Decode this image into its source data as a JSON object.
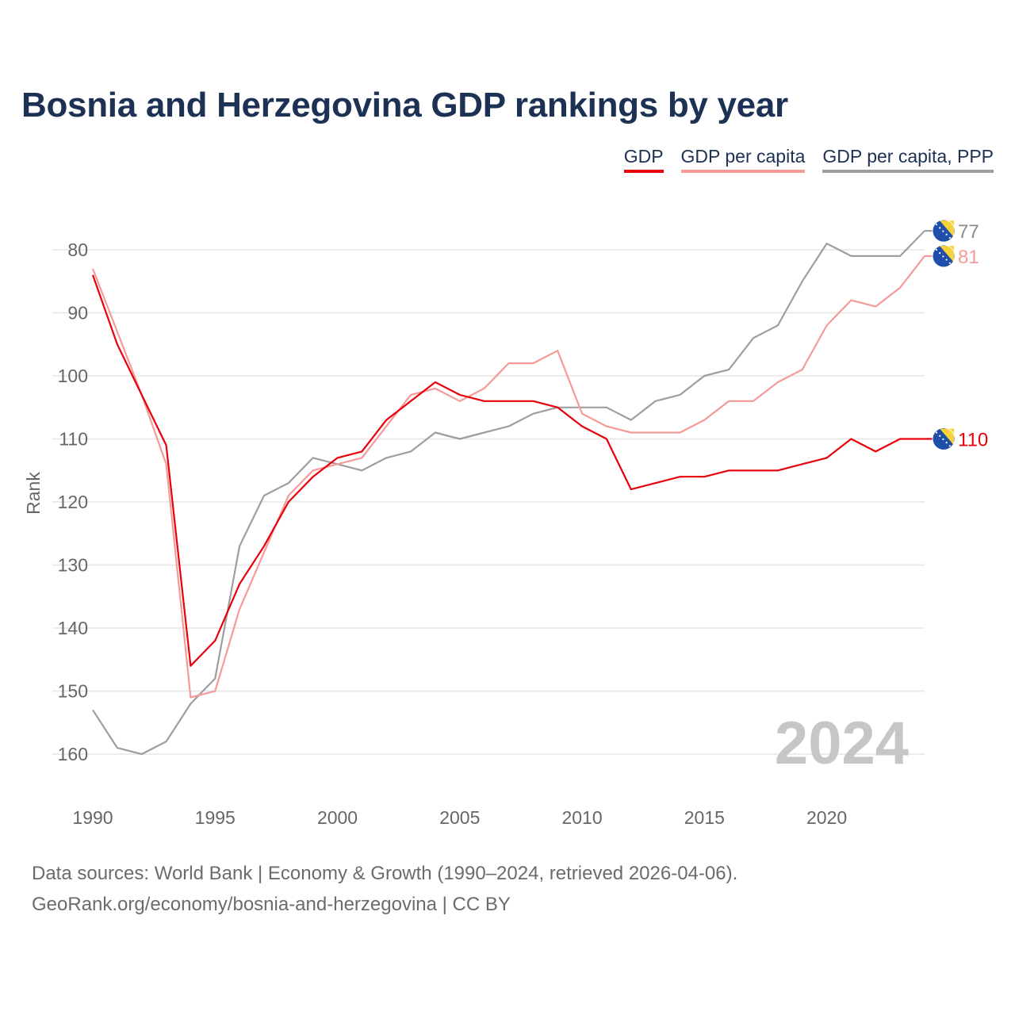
{
  "title": "Bosnia and Herzegovina GDP rankings by year",
  "legend": [
    {
      "label": "GDP",
      "color": "#e8000b"
    },
    {
      "label": "GDP per capita",
      "color": "#f59a9a"
    },
    {
      "label": "GDP per capita, PPP",
      "color": "#9e9e9e"
    }
  ],
  "year_watermark": "2024",
  "source_line1": "Data sources: World Bank | Economy & Growth (1990–2024, retrieved 2026-04-06).",
  "source_line2": "GeoRank.org/economy/bosnia-and-herzegovina | CC BY",
  "chart_data": {
    "type": "line",
    "ylabel": "Rank",
    "xlabel": "",
    "y_inverted": true,
    "ylim": [
      75,
      164
    ],
    "xlim": [
      1990,
      2024
    ],
    "y_ticks": [
      80,
      90,
      100,
      110,
      120,
      130,
      140,
      150,
      160
    ],
    "x_ticks": [
      1990,
      1995,
      2000,
      2005,
      2010,
      2015,
      2020
    ],
    "x": [
      1990,
      1991,
      1992,
      1993,
      1994,
      1995,
      1996,
      1997,
      1998,
      1999,
      2000,
      2001,
      2002,
      2003,
      2004,
      2005,
      2006,
      2007,
      2008,
      2009,
      2010,
      2011,
      2012,
      2013,
      2014,
      2015,
      2016,
      2017,
      2018,
      2019,
      2020,
      2021,
      2022,
      2023,
      2024
    ],
    "series": [
      {
        "name": "GDP",
        "color": "#e8000b",
        "end_label": "110",
        "values": [
          84,
          95,
          103,
          111,
          146,
          142,
          133,
          127,
          120,
          116,
          113,
          112,
          107,
          104,
          101,
          103,
          104,
          104,
          104,
          105,
          108,
          110,
          118,
          117,
          116,
          116,
          115,
          115,
          115,
          114,
          113,
          110,
          112,
          110,
          110
        ]
      },
      {
        "name": "GDP per capita",
        "color": "#f59a9a",
        "end_label": "81",
        "values": [
          83,
          93,
          103,
          114,
          151,
          150,
          137,
          128,
          119,
          115,
          114,
          113,
          108,
          103,
          102,
          104,
          102,
          98,
          98,
          96,
          106,
          108,
          109,
          109,
          109,
          107,
          104,
          104,
          101,
          99,
          92,
          88,
          89,
          86,
          81
        ]
      },
      {
        "name": "GDP per capita, PPP",
        "color": "#9e9e9e",
        "end_label": "77",
        "values": [
          153,
          159,
          160,
          158,
          152,
          148,
          127,
          119,
          117,
          113,
          114,
          115,
          113,
          112,
          109,
          110,
          109,
          108,
          106,
          105,
          105,
          105,
          107,
          104,
          103,
          100,
          99,
          94,
          92,
          85,
          79,
          81,
          81,
          81,
          77
        ]
      }
    ]
  }
}
